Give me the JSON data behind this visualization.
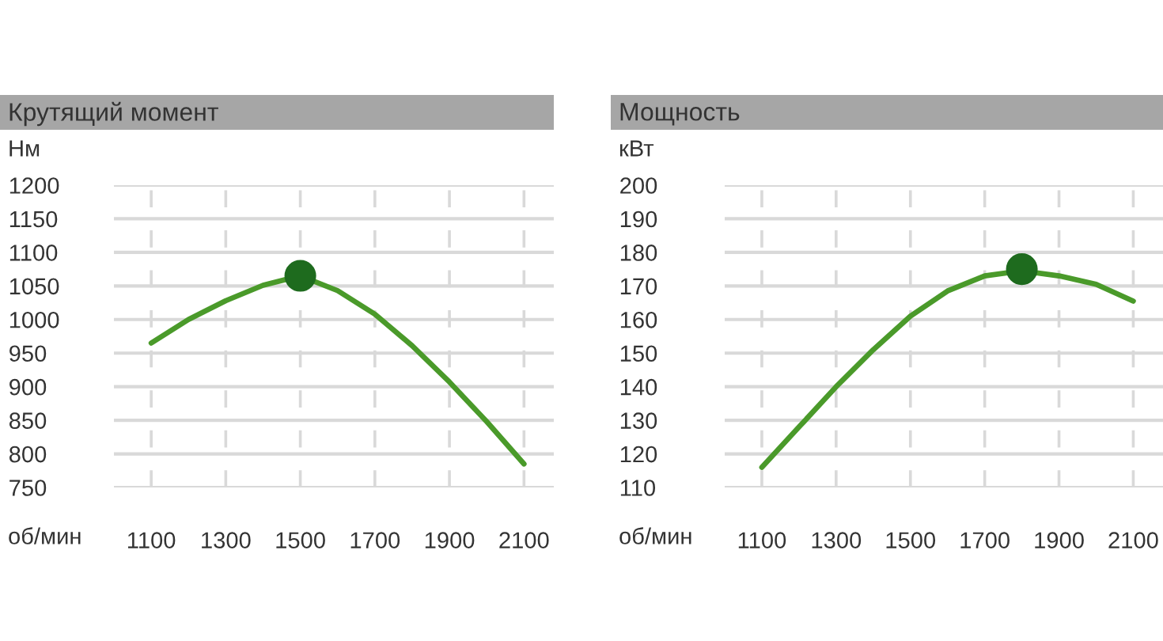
{
  "chart_data": [
    {
      "type": "line",
      "title": "Крутящий момент",
      "ylabel": "Нм",
      "xlabel": "об/мин",
      "x": [
        1100,
        1200,
        1300,
        1400,
        1500,
        1600,
        1700,
        1800,
        1900,
        2000,
        2100
      ],
      "series": [
        {
          "color": "#4a9a2a",
          "values": [
            965,
            1000,
            1028,
            1051,
            1065,
            1043,
            1008,
            961,
            907,
            848,
            785
          ]
        },
        {
          "type": "scatter",
          "marker": "circle",
          "x": [
            1500
          ],
          "color": "#1e6b1e",
          "values": [
            1065
          ]
        }
      ],
      "xlim": [
        1000,
        2180
      ],
      "xticks": [
        1100,
        1300,
        1500,
        1700,
        1900,
        2100
      ],
      "ylim": [
        750,
        1200
      ],
      "yticks": [
        750,
        800,
        850,
        900,
        950,
        1000,
        1050,
        1100,
        1150,
        1200
      ],
      "grid": true,
      "marker": "none",
      "legend": false
    },
    {
      "type": "line",
      "title": "Мощность",
      "ylabel": "кВт",
      "xlabel": "об/мин",
      "x": [
        1100,
        1200,
        1300,
        1400,
        1500,
        1600,
        1700,
        1800,
        1900,
        2000,
        2100
      ],
      "series": [
        {
          "color": "#4a9a2a",
          "values": [
            116,
            128,
            140,
            151,
            161,
            168.5,
            173,
            174.5,
            173,
            170.5,
            165.5
          ]
        },
        {
          "type": "scatter",
          "marker": "circle",
          "x": [
            1800
          ],
          "color": "#1e6b1e",
          "values": [
            175
          ]
        }
      ],
      "xlim": [
        1000,
        2180
      ],
      "xticks": [
        1100,
        1300,
        1500,
        1700,
        1900,
        2100
      ],
      "ylim": [
        110,
        200
      ],
      "yticks": [
        110,
        120,
        130,
        140,
        150,
        160,
        170,
        180,
        190,
        200
      ],
      "grid": true,
      "marker": "none",
      "legend": false
    }
  ]
}
